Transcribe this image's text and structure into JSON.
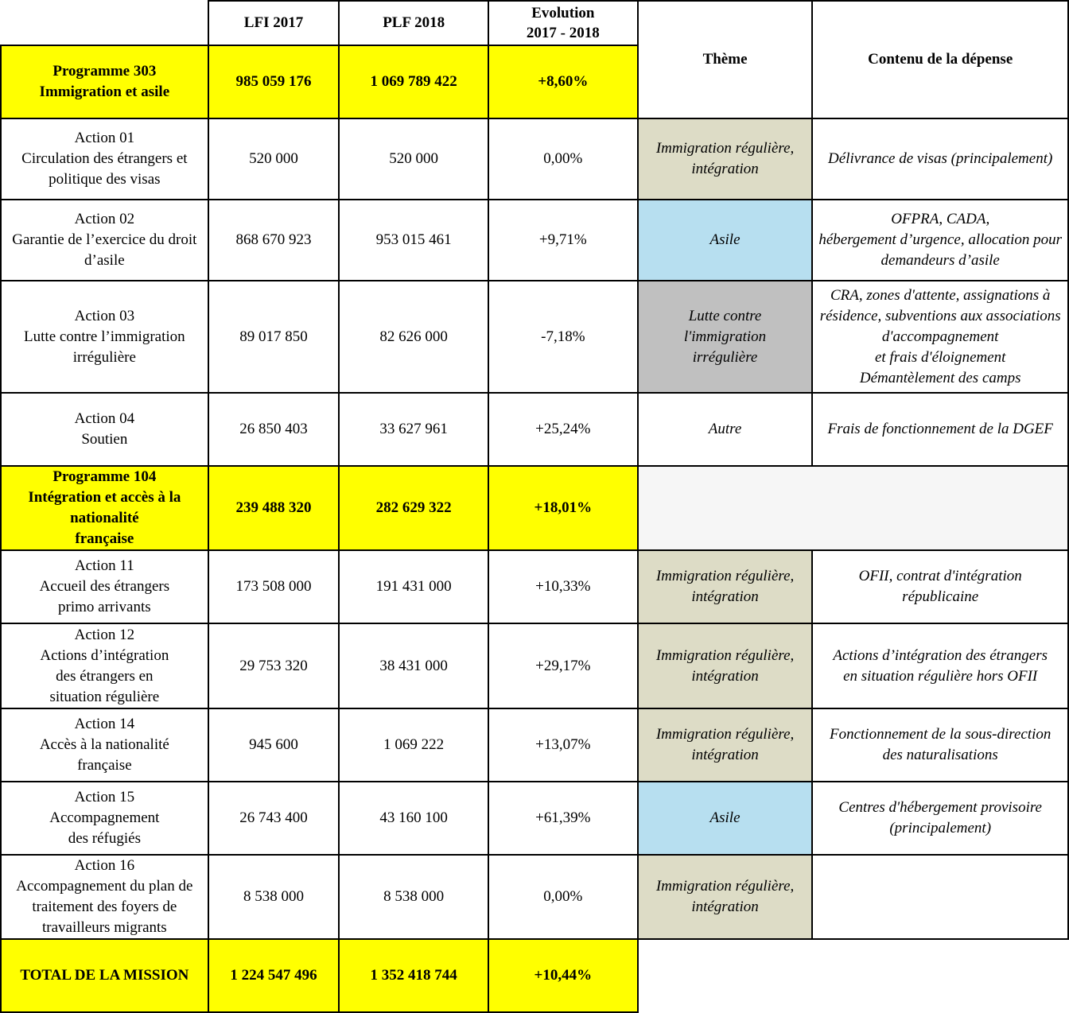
{
  "header": {
    "lfi": "LFI 2017",
    "plf": "PLF 2018",
    "evolution": "Evolution\n2017 - 2018",
    "theme": "Thème",
    "contenu": "Contenu de la dépense"
  },
  "colors": {
    "programme": "#ffff00",
    "immigration_reguliere": "#dddcc6",
    "asile": "#b7dff0",
    "lutte": "#c0c0c0"
  },
  "rows": [
    {
      "type": "programme",
      "label": "Programme 303\nImmigration et asile",
      "lfi": "985 059 176",
      "plf": "1 069 789 422",
      "evo": "+8,60%"
    },
    {
      "type": "action",
      "label": "Action 01\nCirculation des étrangers et politique des visas",
      "lfi": "520 000",
      "plf": "520 000",
      "evo": "0,00%",
      "theme": "Immigration régulière,\nintégration",
      "theme_color": "beige",
      "contenu": "Délivrance de visas (principalement)"
    },
    {
      "type": "action",
      "label": "Action 02\nGarantie de l’exercice du droit d’asile",
      "lfi": "868 670 923",
      "plf": "953 015 461",
      "evo": "+9,71%",
      "theme": "Asile",
      "theme_color": "blue",
      "contenu": "OFPRA, CADA,\nhébergement d’urgence, allocation pour demandeurs d’asile"
    },
    {
      "type": "action",
      "label": "Action 03\nLutte contre l’immigration irrégulière",
      "lfi": "89 017 850",
      "plf": "82 626 000",
      "evo": "-7,18%",
      "theme": "Lutte contre\nl'immigration\nirrégulière",
      "theme_color": "grey",
      "contenu": "CRA, zones d'attente, assignations à résidence, subventions aux associations d'accompagnement\net frais d'éloignement\nDémantèlement des camps"
    },
    {
      "type": "action",
      "label": "Action 04\nSoutien",
      "lfi": "26 850 403",
      "plf": "33 627 961",
      "evo": "+25,24%",
      "theme": "Autre",
      "theme_color": "",
      "contenu": "Frais de fonctionnement de la DGEF"
    },
    {
      "type": "programme",
      "label": "Programme 104\nIntégration et accès à la nationalité\nfrançaise",
      "lfi": "239 488 320",
      "plf": "282 629 322",
      "evo": "+18,01%"
    },
    {
      "type": "action",
      "label": "Action 11\nAccueil des étrangers\nprimo arrivants",
      "lfi": "173 508 000",
      "plf": "191 431 000",
      "evo": "+10,33%",
      "theme": "Immigration régulière,\nintégration",
      "theme_color": "beige",
      "contenu": "OFII, contrat d'intégration\nrépublicaine"
    },
    {
      "type": "action",
      "label": "Action 12\nActions d’intégration\ndes étrangers en\nsituation régulière",
      "lfi": "29 753 320",
      "plf": "38 431 000",
      "evo": "+29,17%",
      "theme": "Immigration régulière,\nintégration",
      "theme_color": "beige",
      "contenu": "Actions d’intégration des étrangers\nen situation régulière hors OFII"
    },
    {
      "type": "action",
      "label": "Action 14\nAccès à la nationalité\nfrançaise",
      "lfi": "945 600",
      "plf": "1 069 222",
      "evo": "+13,07%",
      "theme": "Immigration régulière,\nintégration",
      "theme_color": "beige",
      "contenu": "Fonctionnement de la sous-direction\ndes naturalisations"
    },
    {
      "type": "action",
      "label": "Action 15\nAccompagnement\ndes réfugiés",
      "lfi": "26 743 400",
      "plf": "43 160 100",
      "evo": "+61,39%",
      "theme": "Asile",
      "theme_color": "blue",
      "contenu": "Centres d'hébergement provisoire\n(principalement)"
    },
    {
      "type": "action",
      "label": "Action 16\nAccompagnement du plan de traitement des foyers de travailleurs migrants",
      "lfi": "8 538 000",
      "plf": "8 538 000",
      "evo": "0,00%",
      "theme": "Immigration régulière,\nintégration",
      "theme_color": "beige",
      "contenu": ""
    },
    {
      "type": "total",
      "label": "TOTAL DE LA MISSION",
      "lfi": "1 224 547 496",
      "plf": "1 352 418 744",
      "evo": "+10,44%"
    }
  ]
}
